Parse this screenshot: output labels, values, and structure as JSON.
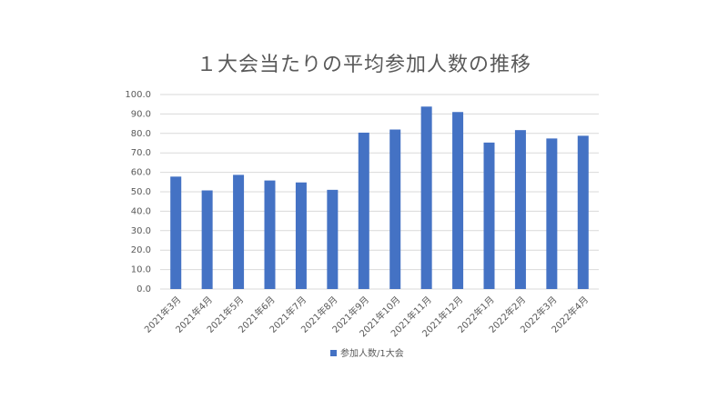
{
  "chart_data": {
    "type": "bar",
    "title": "１大会当たりの平均参加人数の推移",
    "categories": [
      "2021年3月",
      "2021年4月",
      "2021年5月",
      "2021年6月",
      "2021年7月",
      "2021年8月",
      "2021年9月",
      "2021年10月",
      "2021年11月",
      "2021年12月",
      "2022年1月",
      "2022年2月",
      "2022年3月",
      "2022年4月"
    ],
    "series": [
      {
        "name": "参加人数/1大会",
        "color": "#4472c4",
        "values": [
          57.8,
          50.7,
          58.7,
          55.8,
          54.8,
          51.0,
          80.4,
          82.0,
          93.8,
          91.0,
          75.3,
          81.7,
          77.4,
          78.8
        ]
      }
    ],
    "ylim": [
      0,
      100
    ],
    "yticks": [
      {
        "value": 0,
        "label": "0.0"
      },
      {
        "value": 10,
        "label": "10.0"
      },
      {
        "value": 20,
        "label": "20.0"
      },
      {
        "value": 30,
        "label": "30.0"
      },
      {
        "value": 40,
        "label": "40.0"
      },
      {
        "value": 50,
        "label": "50.0"
      },
      {
        "value": 60,
        "label": "60.0"
      },
      {
        "value": 70,
        "label": "70.0"
      },
      {
        "value": 80,
        "label": "80.0"
      },
      {
        "value": 90,
        "label": "90.0"
      },
      {
        "value": 100,
        "label": "100.0"
      }
    ],
    "grid": true,
    "legend": "bottom"
  }
}
